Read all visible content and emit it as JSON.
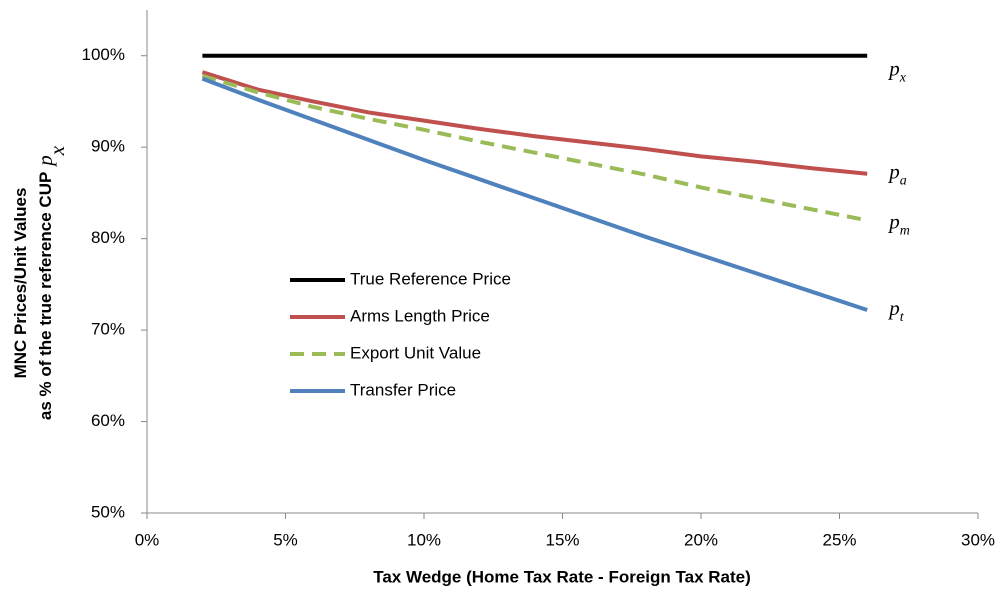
{
  "chart_data": {
    "type": "line",
    "x_label": "Tax Wedge (Home Tax Rate - Foreign Tax Rate)",
    "y_label": [
      "MNC  Prices/Unit Values",
      "as % of the true reference CUP"
    ],
    "y_label_symbol": {
      "text": "p",
      "sub": "x"
    },
    "x": [
      2,
      4,
      6,
      8,
      10,
      12,
      14,
      16,
      18,
      20,
      22,
      24,
      26
    ],
    "series": [
      {
        "name": "True Reference Price",
        "color": "#000000",
        "dash": false,
        "end_label": {
          "text": "p",
          "sub": "x"
        },
        "values": [
          100,
          100,
          100,
          100,
          100,
          100,
          100,
          100,
          100,
          100,
          100,
          100,
          100
        ]
      },
      {
        "name": "Arms Length Price",
        "color": "#c0504d",
        "dash": false,
        "end_label": {
          "text": "p",
          "sub": "a"
        },
        "values": [
          98.2,
          96.3,
          95.0,
          93.8,
          92.9,
          92.0,
          91.2,
          90.5,
          89.8,
          89.0,
          88.4,
          87.7,
          87.1
        ]
      },
      {
        "name": "Export Unit Value",
        "color": "#9bbb59",
        "dash": true,
        "end_label": {
          "text": "p",
          "sub": "m"
        },
        "values": [
          97.8,
          96.0,
          94.4,
          93.1,
          91.9,
          90.6,
          89.4,
          88.2,
          87.0,
          85.6,
          84.4,
          83.2,
          82.0
        ]
      },
      {
        "name": "Transfer Price",
        "color": "#4f81bd",
        "dash": false,
        "end_label": {
          "text": "p",
          "sub": "t"
        },
        "values": [
          97.5,
          95.2,
          93.0,
          90.8,
          88.6,
          86.5,
          84.4,
          82.3,
          80.2,
          78.2,
          76.2,
          74.2,
          72.2
        ]
      }
    ],
    "xlim": [
      0,
      30
    ],
    "xticks": [
      {
        "value": 0,
        "label": "0%"
      },
      {
        "value": 5,
        "label": "5%"
      },
      {
        "value": 10,
        "label": "10%"
      },
      {
        "value": 15,
        "label": "15%"
      },
      {
        "value": 20,
        "label": "20%"
      },
      {
        "value": 25,
        "label": "25%"
      },
      {
        "value": 30,
        "label": "30%"
      }
    ],
    "ylim": [
      50,
      105
    ],
    "yticks": [
      {
        "value": 50,
        "label": "50%"
      },
      {
        "value": 60,
        "label": "60%"
      },
      {
        "value": 70,
        "label": "70%"
      },
      {
        "value": 80,
        "label": "80%"
      },
      {
        "value": 90,
        "label": "90%"
      },
      {
        "value": 100,
        "label": "100%"
      }
    ],
    "grid": false,
    "legend": "inside-lower-left"
  }
}
